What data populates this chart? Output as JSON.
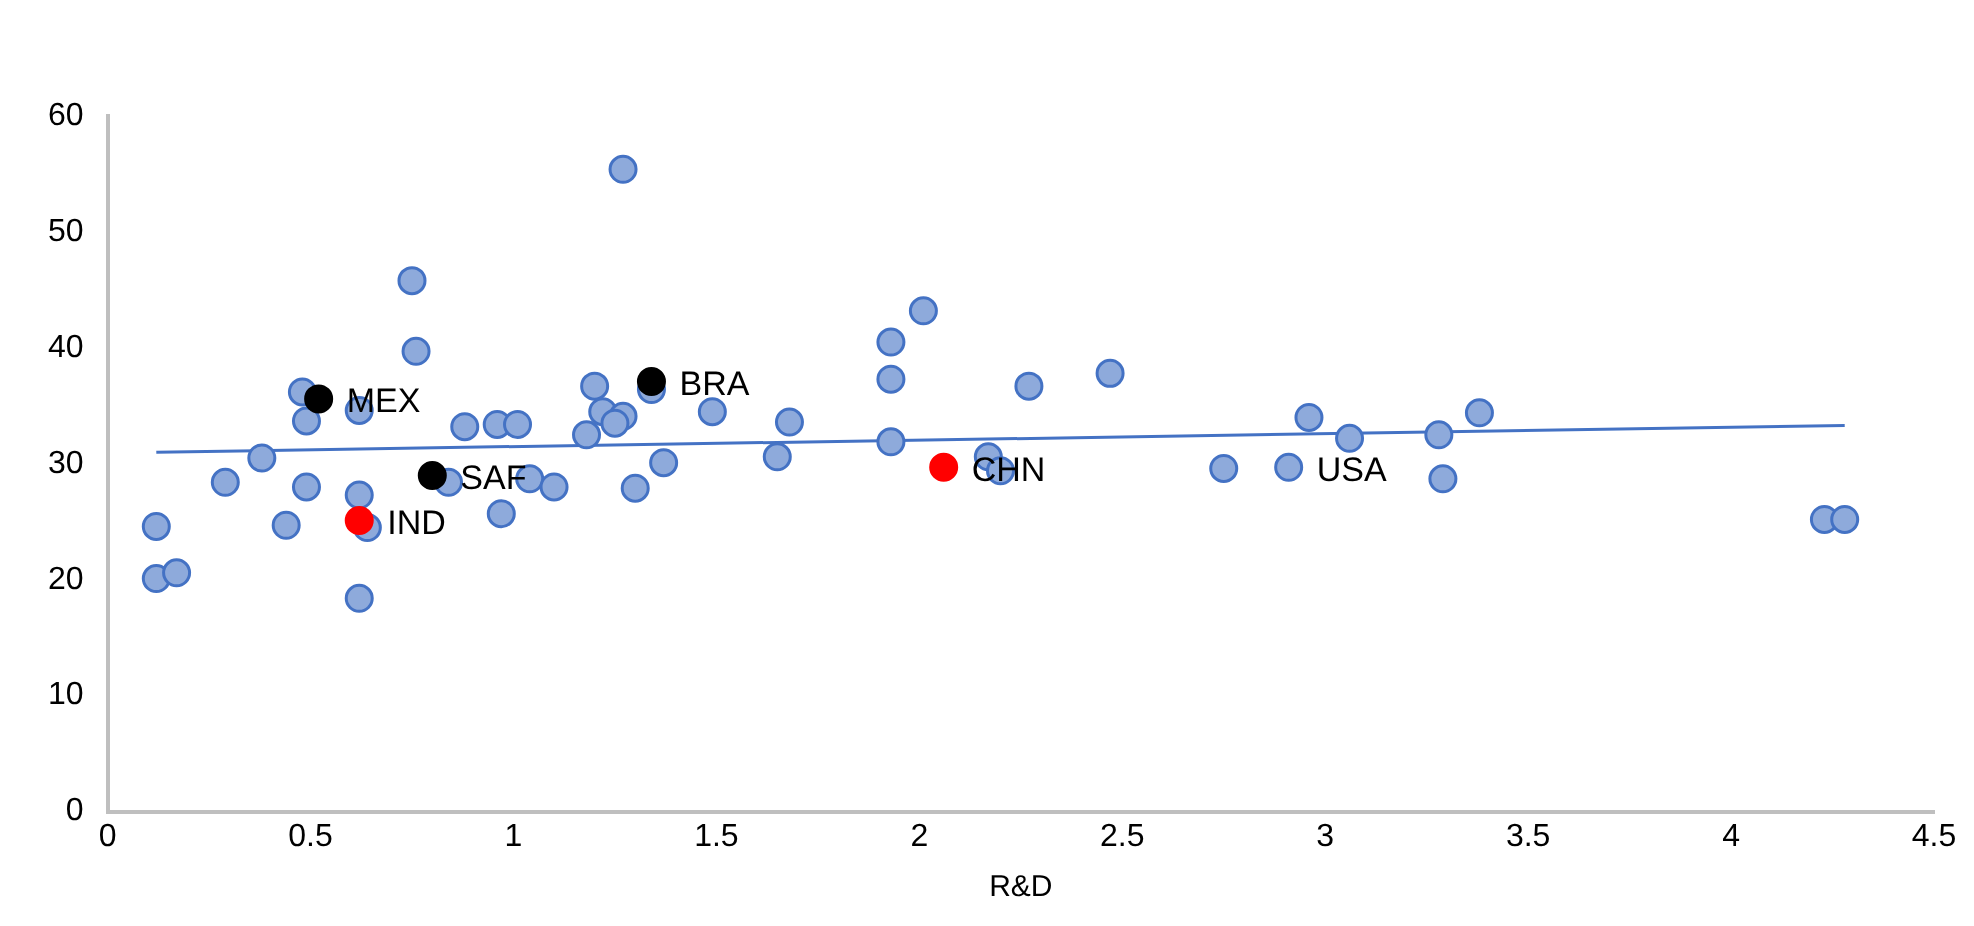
{
  "chart_data": {
    "type": "scatter",
    "xlabel": "R&D",
    "xlim": [
      0,
      4.5
    ],
    "xticks": [
      0,
      0.5,
      1,
      1.5,
      2,
      2.5,
      3,
      3.5,
      4,
      4.5
    ],
    "ylim": [
      0,
      60
    ],
    "yticks": [
      0,
      10,
      20,
      30,
      40,
      50,
      60
    ],
    "grid": false,
    "legend": false,
    "marker": "circle",
    "series": [
      {
        "color": "#8eaadb",
        "x": [
          0.12,
          0.12,
          0.17,
          0.29,
          0.38,
          0.44,
          0.49,
          0.48,
          0.49,
          0.62,
          0.62,
          0.64,
          0.62,
          0.75,
          0.76,
          0.84,
          0.88,
          0.96,
          1.01,
          0.97,
          1.04,
          1.1,
          1.2,
          1.18,
          1.22,
          1.27,
          1.25,
          1.27,
          1.3,
          1.37,
          1.34,
          1.49,
          1.68,
          1.65,
          2.01,
          1.93,
          1.93,
          1.93,
          2.17,
          2.2,
          2.27,
          2.47,
          2.75,
          2.91,
          2.96,
          3.06,
          3.28,
          3.29,
          3.38,
          4.23,
          4.28
        ],
        "values": [
          24.6,
          20.1,
          20.6,
          28.4,
          30.5,
          24.7,
          28.0,
          36.2,
          33.7,
          34.6,
          27.3,
          24.5,
          18.4,
          45.8,
          39.7,
          28.4,
          33.2,
          33.4,
          33.4,
          25.7,
          28.7,
          28.0,
          36.7,
          32.5,
          34.5,
          34.1,
          33.5,
          55.4,
          27.9,
          30.1,
          36.4,
          34.5,
          33.6,
          30.6,
          43.2,
          40.5,
          37.3,
          31.9,
          30.6,
          29.4,
          36.7,
          37.8,
          29.6,
          29.7,
          34.0,
          32.2,
          32.5,
          28.7,
          34.4,
          25.2,
          25.2
        ]
      },
      {
        "color": "#000000",
        "x": [
          0.52,
          0.8,
          1.34
        ],
        "values": [
          35.6,
          29.0,
          37.1
        ]
      },
      {
        "color": "#ff0000",
        "x": [
          0.62,
          2.06
        ],
        "values": [
          25.1,
          29.7
        ]
      },
      {
        "type": "line",
        "color": "#4472c4",
        "marker": "none",
        "line_style": "solid",
        "x": [
          0.12,
          4.28
        ],
        "values": [
          31.0,
          33.3
        ]
      }
    ],
    "annotations": [
      {
        "text": "MEX",
        "x": 0.52,
        "y": 35.6
      },
      {
        "text": "SAF",
        "x": 0.8,
        "y": 29.0
      },
      {
        "text": "BRA",
        "x": 1.34,
        "y": 37.1
      },
      {
        "text": "IND",
        "x": 0.62,
        "y": 25.1
      },
      {
        "text": "CHN",
        "x": 2.06,
        "y": 29.7
      },
      {
        "text": "USA",
        "x": 2.91,
        "y": 29.7
      }
    ]
  }
}
